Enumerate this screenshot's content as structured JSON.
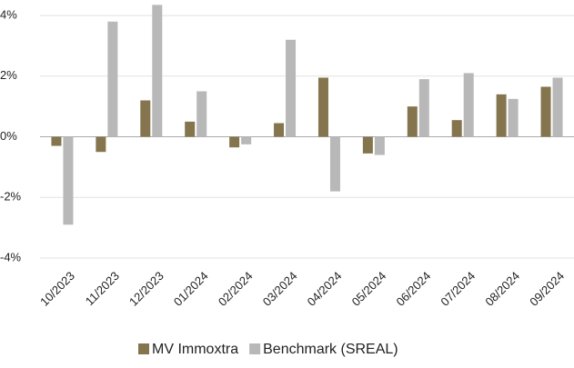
{
  "chart_data": {
    "type": "bar",
    "categories": [
      "10/2023",
      "11/2023",
      "12/2023",
      "01/2024",
      "02/2024",
      "03/2024",
      "04/2024",
      "05/2024",
      "06/2024",
      "07/2024",
      "08/2024",
      "09/2024"
    ],
    "series": [
      {
        "name": "MV Immoxtra",
        "color": "#85754e",
        "values": [
          -0.3,
          -0.5,
          1.2,
          0.5,
          -0.35,
          0.45,
          1.95,
          -0.55,
          1.0,
          0.55,
          1.4,
          1.65
        ]
      },
      {
        "name": "Benchmark (SREAL)",
        "color": "#b8b8b8",
        "values": [
          -2.9,
          3.8,
          4.35,
          1.5,
          -0.25,
          3.2,
          -1.8,
          -0.6,
          1.9,
          2.1,
          1.25,
          1.95
        ]
      }
    ],
    "ylim": [
      -4.3,
      4.5
    ],
    "yticks": [
      {
        "value": -4,
        "label": "-4%"
      },
      {
        "value": -2,
        "label": "-2%"
      },
      {
        "value": 0,
        "label": "0%"
      },
      {
        "value": 2,
        "label": "2%"
      },
      {
        "value": 4,
        "label": "4%"
      }
    ],
    "grid": true,
    "legend": "bottom"
  }
}
